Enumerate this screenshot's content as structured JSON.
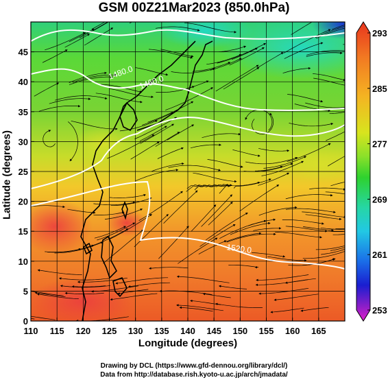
{
  "title": "GSM 00Z21Mar2023 (850.0hPa)",
  "xlabel": "Longitude (degrees)",
  "ylabel": "Latitude  (degrees)",
  "x_ticks": [
    "110",
    "115",
    "120",
    "125",
    "130",
    "135",
    "140",
    "145",
    "150",
    "155",
    "160",
    "165"
  ],
  "y_ticks": [
    "0",
    "5",
    "10",
    "15",
    "20",
    "25",
    "30",
    "35",
    "40",
    "45"
  ],
  "colorbar_ticks": [
    "293",
    "285",
    "277",
    "269",
    "261",
    "253"
  ],
  "contour_labels": [
    "1520.0",
    "1500.0",
    "1480.0",
    "1460.0"
  ],
  "credits": {
    "line1": "Drawing by DCL (https://www.gfd-dennou.org/library/dcl/)",
    "line2": "Data from http://database.rish.kyoto-u.ac.jp/arch/jmadata/"
  },
  "map": {
    "lon_range": [
      110,
      170
    ],
    "lat_range": [
      0,
      50
    ],
    "colorbar_range": [
      253,
      293
    ],
    "colors": {
      "warm_red": "#e8402a",
      "orange": "#f39a2a",
      "yellow_green": "#b8dc2c",
      "green": "#3fd23f",
      "cyan": "#22d6c8",
      "blue": "#1a28c8",
      "magenta": "#e020c8"
    }
  }
}
